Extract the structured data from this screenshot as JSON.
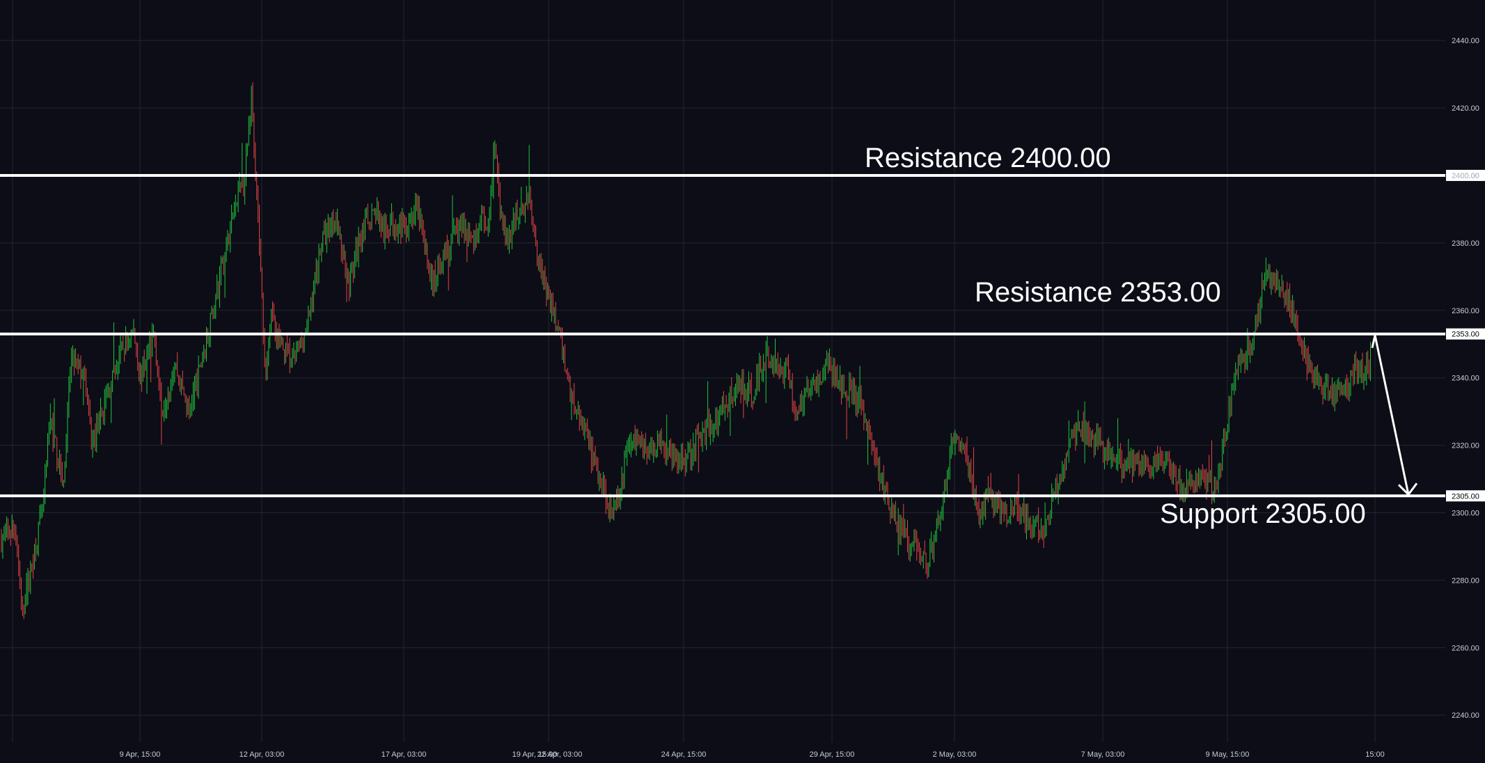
{
  "chart_data": {
    "type": "candlestick",
    "title": "",
    "xlabel": "",
    "ylabel": "",
    "ylim": [
      2232,
      2452
    ],
    "y_ticks": [
      2240,
      2260,
      2280,
      2300,
      2320,
      2340,
      2360,
      2380,
      2400,
      2420,
      2440
    ],
    "y_tick_labels": [
      "2240.00",
      "2260.00",
      "2280.00",
      "2300.00",
      "2320.00",
      "2340.00",
      "2360.00",
      "2380.00",
      "2400.00",
      "2420.00",
      "2440.00"
    ],
    "x_tick_labels": [
      "9 Apr, 15:00",
      "12 Apr, 03:00",
      "17 Apr, 03:00",
      "19 Apr, 15:00",
      "22 Apr, 03:00",
      "24 Apr, 15:00",
      "29 Apr, 15:00",
      "2 May, 03:00",
      "7 May, 03:00",
      "9 May, 15:00",
      "15:00"
    ],
    "grid": true,
    "colors": {
      "background": "#0c0d17",
      "up": "#1fc83b",
      "down": "#e64545",
      "grid": "#23262f",
      "level_line": "#ffffff",
      "label": "#c9ccd6"
    },
    "price_path": [
      [
        0,
        2292
      ],
      [
        2,
        2296
      ],
      [
        3,
        2270
      ],
      [
        6,
        2302
      ],
      [
        7,
        2328
      ],
      [
        9,
        2308
      ],
      [
        10,
        2346
      ],
      [
        12,
        2340
      ],
      [
        13,
        2320
      ],
      [
        16,
        2340
      ],
      [
        17,
        2347
      ],
      [
        19,
        2354
      ],
      [
        20,
        2340
      ],
      [
        22,
        2354
      ],
      [
        23,
        2330
      ],
      [
        25,
        2344
      ],
      [
        27,
        2330
      ],
      [
        29,
        2346
      ],
      [
        32,
        2375
      ],
      [
        34,
        2395
      ],
      [
        35,
        2398
      ],
      [
        36,
        2425
      ],
      [
        37,
        2385
      ],
      [
        38,
        2340
      ],
      [
        39,
        2360
      ],
      [
        40,
        2350
      ],
      [
        42,
        2345
      ],
      [
        44,
        2355
      ],
      [
        46,
        2380
      ],
      [
        48,
        2388
      ],
      [
        50,
        2368
      ],
      [
        52,
        2385
      ],
      [
        54,
        2390
      ],
      [
        55,
        2382
      ],
      [
        56,
        2386
      ],
      [
        58,
        2385
      ],
      [
        60,
        2390
      ],
      [
        61,
        2378
      ],
      [
        62,
        2368
      ],
      [
        64,
        2378
      ],
      [
        66,
        2385
      ],
      [
        68,
        2380
      ],
      [
        69,
        2388
      ],
      [
        70,
        2382
      ],
      [
        71,
        2408
      ],
      [
        72,
        2385
      ],
      [
        73,
        2380
      ],
      [
        74,
        2388
      ],
      [
        76,
        2394
      ],
      [
        77,
        2380
      ],
      [
        78,
        2368
      ],
      [
        80,
        2355
      ],
      [
        82,
        2335
      ],
      [
        84,
        2325
      ],
      [
        86,
        2310
      ],
      [
        88,
        2300
      ],
      [
        89,
        2305
      ],
      [
        90,
        2320
      ],
      [
        92,
        2322
      ],
      [
        93,
        2318
      ],
      [
        95,
        2322
      ],
      [
        97,
        2315
      ],
      [
        99,
        2318
      ],
      [
        100,
        2322
      ],
      [
        103,
        2328
      ],
      [
        105,
        2335
      ],
      [
        106,
        2338
      ],
      [
        108,
        2335
      ],
      [
        110,
        2347
      ],
      [
        112,
        2340
      ],
      [
        113,
        2345
      ],
      [
        114,
        2330
      ],
      [
        116,
        2336
      ],
      [
        118,
        2340
      ],
      [
        119,
        2345
      ],
      [
        120,
        2340
      ],
      [
        122,
        2336
      ],
      [
        124,
        2330
      ],
      [
        126,
        2314
      ],
      [
        128,
        2300
      ],
      [
        130,
        2292
      ],
      [
        132,
        2290
      ],
      [
        133,
        2285
      ],
      [
        134,
        2290
      ],
      [
        135,
        2300
      ],
      [
        136,
        2310
      ],
      [
        137,
        2323
      ],
      [
        138,
        2320
      ],
      [
        139,
        2315
      ],
      [
        140,
        2305
      ],
      [
        141,
        2298
      ],
      [
        142,
        2305
      ],
      [
        144,
        2300
      ],
      [
        146,
        2302
      ],
      [
        147,
        2300
      ],
      [
        148,
        2295
      ],
      [
        149,
        2296
      ],
      [
        150,
        2292
      ],
      [
        151,
        2302
      ],
      [
        153,
        2316
      ],
      [
        154,
        2323
      ],
      [
        155,
        2325
      ],
      [
        156,
        2325
      ],
      [
        158,
        2320
      ],
      [
        160,
        2315
      ],
      [
        162,
        2315
      ],
      [
        164,
        2315
      ],
      [
        166,
        2314
      ],
      [
        168,
        2315
      ],
      [
        169,
        2312
      ],
      [
        170,
        2306
      ],
      [
        172,
        2310
      ],
      [
        174,
        2307
      ],
      [
        175,
        2310
      ],
      [
        176,
        2322
      ],
      [
        177,
        2335
      ],
      [
        178,
        2343
      ],
      [
        180,
        2350
      ],
      [
        182,
        2372
      ],
      [
        184,
        2366
      ],
      [
        185,
        2362
      ],
      [
        186,
        2360
      ],
      [
        187,
        2350
      ],
      [
        189,
        2340
      ],
      [
        191,
        2336
      ],
      [
        193,
        2336
      ],
      [
        194,
        2340
      ],
      [
        195,
        2343
      ],
      [
        196,
        2340
      ],
      [
        197,
        2345
      ]
    ],
    "levels": [
      {
        "value": 2400.0,
        "tag": "2400.00",
        "annotation": "Resistance 2400.00"
      },
      {
        "value": 2353.0,
        "tag": "2353.00",
        "annotation": "Resistance 2353.00"
      },
      {
        "value": 2305.0,
        "tag": "2305.00",
        "annotation": "Support 2305.00"
      }
    ],
    "projection_arrow": {
      "from": 2353,
      "to": 2305
    }
  }
}
